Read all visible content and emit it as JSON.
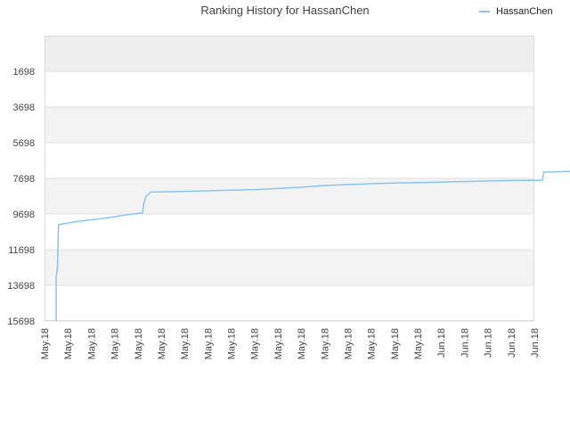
{
  "chart_data": {
    "type": "line",
    "title": "Ranking History for HassanChen",
    "xlabel": "",
    "ylabel": "",
    "y_axis_inverted": true,
    "ylim": [
      15698,
      -302
    ],
    "yticks": [
      1698,
      3698,
      5698,
      7698,
      9698,
      11698,
      13698,
      15698
    ],
    "x_tick_labels": [
      "May.18",
      "May.18",
      "May.18",
      "May.18",
      "May.18",
      "May.18",
      "May.18",
      "May.18",
      "May.18",
      "May.18",
      "May.18",
      "May.18",
      "May.18",
      "May.18",
      "May.18",
      "May.18",
      "May.18",
      "Jun.18",
      "Jun.18",
      "Jun.18",
      "Jun.18",
      "Jun.18"
    ],
    "grid": "horizontal",
    "banding": "alternating",
    "legend_position": "top-right",
    "series": [
      {
        "name": "HassanChen",
        "color": "#8cc4ef",
        "points": [
          [
            0.5,
            15698
          ],
          [
            0.5,
            13200
          ],
          [
            0.55,
            12800
          ],
          [
            0.6,
            10300
          ],
          [
            0.8,
            10250
          ],
          [
            1.5,
            10100
          ],
          [
            2.5,
            9950
          ],
          [
            3.5,
            9750
          ],
          [
            4.1,
            9650
          ],
          [
            4.2,
            9650
          ],
          [
            4.25,
            9150
          ],
          [
            4.35,
            8700
          ],
          [
            4.55,
            8470
          ],
          [
            5,
            8460
          ],
          [
            6,
            8430
          ],
          [
            7,
            8400
          ],
          [
            8,
            8360
          ],
          [
            9,
            8330
          ],
          [
            10,
            8270
          ],
          [
            11,
            8200
          ],
          [
            12,
            8100
          ],
          [
            13,
            8050
          ],
          [
            14,
            8000
          ],
          [
            15,
            7960
          ],
          [
            16,
            7940
          ],
          [
            17,
            7910
          ],
          [
            18,
            7880
          ],
          [
            19,
            7850
          ],
          [
            20,
            7820
          ],
          [
            21,
            7810
          ],
          [
            21.35,
            7800
          ],
          [
            21.4,
            7350
          ],
          [
            22,
            7330
          ],
          [
            23,
            7300
          ],
          [
            24,
            7290
          ],
          [
            25,
            7200
          ]
        ]
      }
    ]
  }
}
